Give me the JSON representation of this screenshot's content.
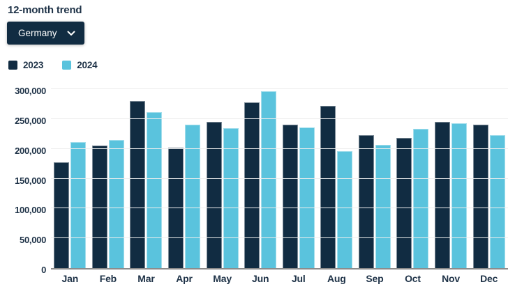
{
  "title": "12-month trend",
  "dropdown": {
    "selected": "Germany",
    "icon": "chevron-down"
  },
  "chart_data": {
    "type": "bar",
    "title": "12-month trend",
    "categories": [
      "Jan",
      "Feb",
      "Mar",
      "Apr",
      "May",
      "Jun",
      "Jul",
      "Aug",
      "Sep",
      "Oct",
      "Nov",
      "Dec"
    ],
    "series": [
      {
        "name": "2023",
        "color": "#112c42",
        "values": [
          178000,
          205000,
          280000,
          202000,
          245000,
          278000,
          241000,
          272000,
          223000,
          218000,
          245000,
          241000
        ]
      },
      {
        "name": "2024",
        "color": "#5ac3dd",
        "values": [
          211000,
          215000,
          262000,
          241000,
          235000,
          296000,
          236000,
          196000,
          207000,
          233000,
          243000,
          223000
        ]
      }
    ],
    "xlabel": "",
    "ylabel": "",
    "ylim": [
      0,
      300000
    ],
    "ytick_interval": 50000,
    "ytick_labels": [
      "0",
      "50,000",
      "100,000",
      "150,000",
      "200,000",
      "250,000",
      "300,000"
    ],
    "grid": true,
    "legend_position": "top-left"
  },
  "colors": {
    "navy": "#112c42",
    "light_blue": "#5ac3dd",
    "text": "#1e3247",
    "gridline": "#ededed",
    "axis_line": "#8c8c8c",
    "background": "#ffffff",
    "dropdown_text": "#ffffff"
  }
}
